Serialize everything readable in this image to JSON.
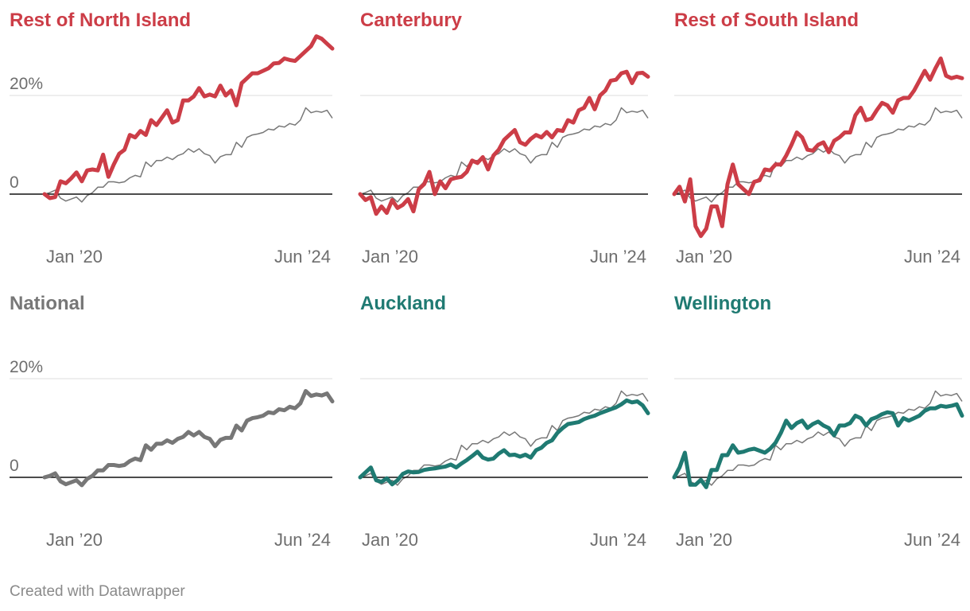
{
  "colors": {
    "red": "#cc3d47",
    "teal": "#1f7a72",
    "gray": "#777777",
    "national_ref": "#777777",
    "grid": "#dddddd",
    "zero": "#111111",
    "tick_text": "#6e6e6e"
  },
  "chart_data": [
    {
      "type": "line",
      "title": "Rest of North Island",
      "color_key": "red",
      "ylim": [
        -12,
        30
      ],
      "yticks": [
        {
          "value": 0,
          "label": "0"
        },
        {
          "value": 20,
          "label": "20%"
        }
      ],
      "xticks": [
        {
          "value": 2,
          "label": "Jan ’20"
        },
        {
          "value": 55,
          "label": "Jun ’24"
        }
      ],
      "series": [
        {
          "name": "Rest of North Island",
          "values": [
            0,
            -0.8,
            -0.6,
            2.6,
            2.2,
            3.2,
            4.4,
            2.6,
            4.8,
            5,
            4.8,
            8,
            3.5,
            6,
            8.2,
            9,
            12,
            11.5,
            12.8,
            12,
            15,
            14,
            15.5,
            17,
            14.5,
            15,
            19,
            19,
            19.8,
            21.5,
            19.8,
            20.2,
            19.8,
            22,
            20,
            21,
            18,
            22.5,
            23.5,
            24.5,
            24.5,
            25,
            25.5,
            26.5,
            26.6,
            27.5,
            27.2,
            27,
            28,
            29,
            30,
            32,
            31.5,
            30.5,
            29.5
          ]
        }
      ]
    },
    {
      "type": "line",
      "title": "Canterbury",
      "color_key": "red",
      "ylim": [
        -12,
        30
      ],
      "yticks": [
        {
          "value": 0,
          "label": ""
        },
        {
          "value": 20,
          "label": ""
        }
      ],
      "xticks": [
        {
          "value": 2,
          "label": "Jan ’20"
        },
        {
          "value": 55,
          "label": "Jun ’24"
        }
      ],
      "series": [
        {
          "name": "Canterbury",
          "values": [
            0,
            -1.2,
            -0.6,
            -4,
            -2.5,
            -3.8,
            -1.2,
            -2.8,
            -2.2,
            -1,
            -3.5,
            1,
            2,
            4.5,
            0,
            2.6,
            1.2,
            3,
            3.3,
            3.5,
            4.5,
            6.8,
            6.3,
            7.5,
            5,
            7.8,
            9,
            11,
            12,
            13,
            10.5,
            10,
            11.2,
            12,
            11.5,
            12.6,
            11.5,
            13,
            12.8,
            15,
            14.5,
            17,
            17.5,
            19.5,
            17.2,
            20,
            21,
            23,
            23.2,
            24.5,
            24.8,
            22.5,
            24.5,
            24.6,
            23.8
          ]
        }
      ]
    },
    {
      "type": "line",
      "title": "Rest of South Island",
      "color_key": "red",
      "ylim": [
        -12,
        30
      ],
      "yticks": [
        {
          "value": 0,
          "label": ""
        },
        {
          "value": 20,
          "label": ""
        }
      ],
      "xticks": [
        {
          "value": 2,
          "label": "Jan ’20"
        },
        {
          "value": 55,
          "label": "Jun ’24"
        }
      ],
      "series": [
        {
          "name": "Rest of South Island",
          "values": [
            0,
            1.5,
            -1.5,
            3,
            -6.5,
            -8.5,
            -7,
            -2.5,
            -2.5,
            -6.5,
            2,
            6,
            2,
            1,
            0,
            2.5,
            2.8,
            5,
            4.8,
            6,
            6,
            7.8,
            10,
            12.5,
            11.5,
            9,
            8.8,
            10,
            10.5,
            8.5,
            10.8,
            11.5,
            12.5,
            12.5,
            16,
            17.5,
            15,
            15.3,
            17,
            18.5,
            18,
            16.5,
            19,
            19.5,
            19.5,
            21,
            23,
            25,
            23.2,
            25.5,
            27.5,
            24,
            23.5,
            23.8,
            23.5
          ]
        }
      ]
    },
    {
      "type": "line",
      "title": "National",
      "color_key": "gray",
      "ylim": [
        -12,
        30
      ],
      "yticks": [
        {
          "value": 0,
          "label": "0"
        },
        {
          "value": 20,
          "label": "20%"
        }
      ],
      "xticks": [
        {
          "value": 2,
          "label": "Jan ’20"
        },
        {
          "value": 55,
          "label": "Jun ’24"
        }
      ],
      "series": [
        {
          "name": "National",
          "values": [
            0,
            0.3,
            0.8,
            -0.8,
            -1.4,
            -1,
            -0.6,
            -1.6,
            -0.3,
            0.3,
            1.4,
            1.4,
            2.5,
            2.5,
            2.3,
            2.5,
            3.3,
            3.8,
            3.5,
            6.5,
            5.6,
            6.8,
            6.8,
            7.5,
            7,
            7.8,
            8.2,
            9.2,
            8.5,
            9.2,
            8.2,
            7.8,
            6.3,
            7.6,
            8,
            8,
            10.5,
            9.5,
            11.5,
            12,
            12.2,
            12.5,
            13.2,
            13,
            13.8,
            13.6,
            14.3,
            14,
            15,
            17.5,
            16.5,
            16.8,
            16.6,
            17,
            15.4
          ]
        }
      ]
    },
    {
      "type": "line",
      "title": "Auckland",
      "color_key": "teal",
      "ylim": [
        -12,
        30
      ],
      "yticks": [
        {
          "value": 0,
          "label": ""
        },
        {
          "value": 20,
          "label": ""
        }
      ],
      "xticks": [
        {
          "value": 2,
          "label": "Jan ’20"
        },
        {
          "value": 55,
          "label": "Jun ’24"
        }
      ],
      "series": [
        {
          "name": "Auckland",
          "values": [
            0,
            1,
            2,
            -0.6,
            -0.9,
            -0.2,
            -1.4,
            -0.6,
            0.7,
            1.2,
            1,
            1.1,
            1.5,
            1.7,
            1.8,
            2,
            2.2,
            2.6,
            2,
            2.8,
            3.5,
            4.3,
            5.2,
            4,
            3.6,
            3.8,
            4.8,
            5.5,
            4.5,
            4.6,
            4.2,
            4.6,
            4,
            5.5,
            6,
            7,
            7.5,
            9,
            10,
            10.8,
            11,
            11.2,
            11.8,
            12.2,
            12.5,
            13,
            13.4,
            13.8,
            14.2,
            14.8,
            15.6,
            15.2,
            15.4,
            14.6,
            13
          ]
        }
      ]
    },
    {
      "type": "line",
      "title": "Wellington",
      "color_key": "teal",
      "ylim": [
        -12,
        30
      ],
      "yticks": [
        {
          "value": 0,
          "label": ""
        },
        {
          "value": 20,
          "label": ""
        }
      ],
      "xticks": [
        {
          "value": 2,
          "label": "Jan ’20"
        },
        {
          "value": 55,
          "label": "Jun ’24"
        }
      ],
      "series": [
        {
          "name": "Wellington",
          "values": [
            0,
            2,
            5,
            -1.5,
            -1.5,
            -0.5,
            -2,
            1.5,
            1.5,
            4.5,
            4.5,
            6.5,
            5,
            5.2,
            5.6,
            5.8,
            5.4,
            5,
            5.8,
            7,
            9,
            11.5,
            10,
            11,
            11.5,
            10,
            10.8,
            11.3,
            10.5,
            10,
            8.5,
            10.5,
            10.5,
            11,
            12.5,
            12,
            10.5,
            11.8,
            12.2,
            12.8,
            13.2,
            13,
            10.5,
            12,
            11.5,
            12,
            12.5,
            13.5,
            14,
            14,
            14.5,
            14.3,
            14.5,
            14.8,
            12.5
          ]
        }
      ]
    }
  ],
  "credit": "Created with Datawrapper"
}
